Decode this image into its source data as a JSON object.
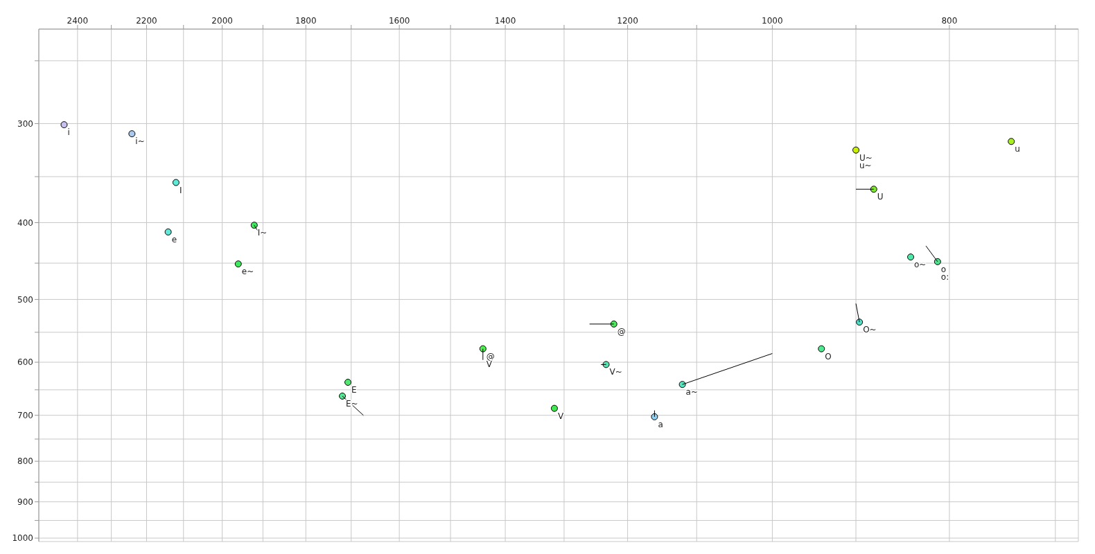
{
  "chart_data": {
    "type": "scatter",
    "log": "xy",
    "grid": true,
    "legend": false,
    "xlim": [
      2520,
      680
    ],
    "ylim": [
      1010,
      228
    ],
    "xticks": [
      {
        "value": 2400,
        "label": "2400"
      },
      {
        "value": 2300,
        "label": null
      },
      {
        "value": 2200,
        "label": "2200"
      },
      {
        "value": 2100,
        "label": null
      },
      {
        "value": 2000,
        "label": "2000"
      },
      {
        "value": 1900,
        "label": null
      },
      {
        "value": 1800,
        "label": "1800"
      },
      {
        "value": 1700,
        "label": null
      },
      {
        "value": 1600,
        "label": "1600"
      },
      {
        "value": 1500,
        "label": null
      },
      {
        "value": 1400,
        "label": "1400"
      },
      {
        "value": 1300,
        "label": null
      },
      {
        "value": 1200,
        "label": "1200"
      },
      {
        "value": 1100,
        "label": null
      },
      {
        "value": 1000,
        "label": "1000"
      },
      {
        "value": 900,
        "label": null
      },
      {
        "value": 800,
        "label": "800"
      },
      {
        "value": 700,
        "label": null
      }
    ],
    "yticks": [
      {
        "value": 250,
        "label": null
      },
      {
        "value": 300,
        "label": "300"
      },
      {
        "value": 350,
        "label": null
      },
      {
        "value": 400,
        "label": "400"
      },
      {
        "value": 450,
        "label": null
      },
      {
        "value": 500,
        "label": "500"
      },
      {
        "value": 550,
        "label": null
      },
      {
        "value": 600,
        "label": "600"
      },
      {
        "value": 650,
        "label": null
      },
      {
        "value": 700,
        "label": "700"
      },
      {
        "value": 750,
        "label": null
      },
      {
        "value": 800,
        "label": "800"
      },
      {
        "value": 850,
        "label": null
      },
      {
        "value": 900,
        "label": "900"
      },
      {
        "value": 950,
        "label": null
      },
      {
        "value": 1000,
        "label": "1000"
      }
    ],
    "series": [
      {
        "type": "line",
        "marker": "none",
        "color": "#000000",
        "x": [
          1908,
          1921
        ],
        "values": [
          413,
          403
        ]
      },
      {
        "type": "line",
        "marker": "none",
        "color": "#000000",
        "x": [
          1719,
          1674
        ],
        "values": [
          662,
          700
        ]
      },
      {
        "type": "line",
        "marker": "none",
        "color": "#000000",
        "x": [
          1440,
          1440
        ],
        "values": [
          577,
          596
        ]
      },
      {
        "type": "line",
        "marker": "none",
        "color": "#000000",
        "x": [
          1259,
          1221
        ],
        "values": [
          537,
          537
        ]
      },
      {
        "type": "line",
        "marker": "none",
        "color": "#000000",
        "x": [
          1241,
          1233
        ],
        "values": [
          604,
          604
        ]
      },
      {
        "type": "line",
        "marker": "none",
        "color": "#000000",
        "x": [
          1120,
          1000
        ],
        "values": [
          640,
          585
        ]
      },
      {
        "type": "line",
        "marker": "none",
        "color": "#000000",
        "x": [
          1160,
          1160
        ],
        "values": [
          703,
          690
        ]
      },
      {
        "type": "line",
        "marker": "none",
        "color": "#000000",
        "x": [
          896,
          900
        ],
        "values": [
          534,
          506
        ]
      },
      {
        "type": "line",
        "marker": "none",
        "color": "#000000",
        "x": [
          900,
          880
        ],
        "values": [
          363,
          363
        ]
      },
      {
        "type": "line",
        "marker": "none",
        "color": "#000000",
        "x": [
          812,
          824
        ],
        "values": [
          448,
          428
        ]
      },
      {
        "type": "scatter",
        "marker": "circle",
        "x": [
          2441,
          2241,
          2120,
          2141,
          1921,
          1960,
          1707,
          1719,
          1440,
          1316,
          1221,
          1233,
          1120,
          1160,
          940,
          896,
          900,
          880,
          740,
          840,
          812
        ],
        "values": [
          301,
          309,
          356,
          411,
          403,
          451,
          636,
          662,
          577,
          686,
          537,
          604,
          640,
          703,
          577,
          534,
          324,
          363,
          316,
          442,
          448
        ],
        "colors": [
          "#c8c0f0",
          "#a8c8f0",
          "#60e8d8",
          "#60e8d8",
          "#40e860",
          "#40e860",
          "#50e870",
          "#50e890",
          "#50f050",
          "#40e850",
          "#50e860",
          "#50e8b0",
          "#50e8c0",
          "#90d0f0",
          "#50e890",
          "#50e0c8",
          "#c8f000",
          "#80e830",
          "#a8f020",
          "#50e8a8",
          "#50e090"
        ]
      }
    ],
    "annotations": [
      {
        "text": "i",
        "x": 2441,
        "y": 301
      },
      {
        "text": "i~",
        "x": 2241,
        "y": 309
      },
      {
        "text": "I",
        "x": 2120,
        "y": 356
      },
      {
        "text": "e",
        "x": 2141,
        "y": 411
      },
      {
        "text": "I~",
        "x": 1921,
        "y": 403
      },
      {
        "text": "e~",
        "x": 1960,
        "y": 451
      },
      {
        "text": "E",
        "x": 1707,
        "y": 636
      },
      {
        "text": "E~",
        "x": 1719,
        "y": 662
      },
      {
        "text": "@",
        "x": 1440,
        "y": 577
      },
      {
        "text": "V",
        "x": 1440,
        "y": 577
      },
      {
        "text": "V",
        "x": 1316,
        "y": 686
      },
      {
        "text": "@",
        "x": 1221,
        "y": 537
      },
      {
        "text": "V~",
        "x": 1233,
        "y": 604
      },
      {
        "text": "a~",
        "x": 1120,
        "y": 640
      },
      {
        "text": "a",
        "x": 1160,
        "y": 703
      },
      {
        "text": "O",
        "x": 940,
        "y": 577
      },
      {
        "text": "O~",
        "x": 896,
        "y": 534
      },
      {
        "text": "U~",
        "x": 900,
        "y": 324
      },
      {
        "text": "u~",
        "x": 900,
        "y": 324
      },
      {
        "text": "U",
        "x": 880,
        "y": 363
      },
      {
        "text": "u",
        "x": 740,
        "y": 316
      },
      {
        "text": "o~",
        "x": 840,
        "y": 442
      },
      {
        "text": "o",
        "x": 812,
        "y": 448
      },
      {
        "text": "o:",
        "x": 812,
        "y": 448
      }
    ]
  }
}
